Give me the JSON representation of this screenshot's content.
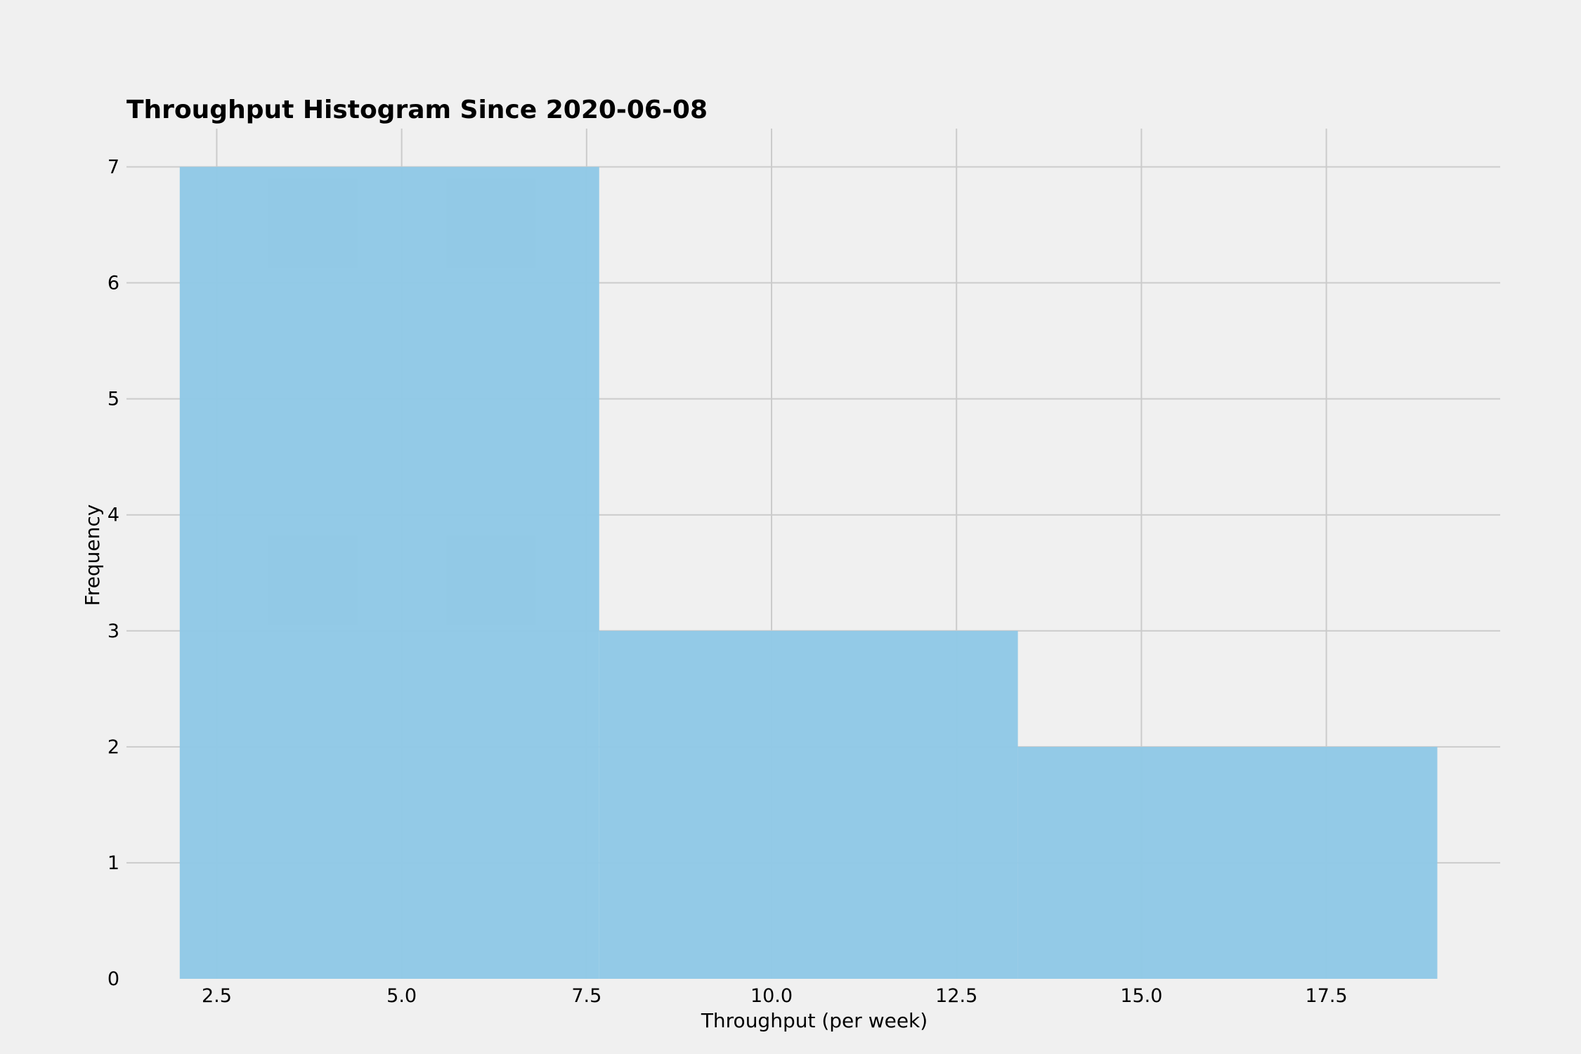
{
  "chart_data": {
    "type": "bar",
    "title": "Throughput Histogram Since 2020-06-08",
    "xlabel": "Throughput (per week)",
    "ylabel": "Frequency",
    "bins": [
      {
        "start": 2.0,
        "end": 7.67,
        "count": 7
      },
      {
        "start": 7.67,
        "end": 13.33,
        "count": 3
      },
      {
        "start": 13.33,
        "end": 19.0,
        "count": 2
      }
    ],
    "xlim": [
      1.28,
      19.85
    ],
    "ylim": [
      0,
      7.33
    ],
    "xticks": [
      2.5,
      5.0,
      7.5,
      10.0,
      12.5,
      15.0,
      17.5
    ],
    "xtick_labels": [
      "2.5",
      "5.0",
      "7.5",
      "10.0",
      "12.5",
      "15.0",
      "17.5"
    ],
    "yticks": [
      0,
      1,
      2,
      3,
      4,
      5,
      6,
      7
    ],
    "ytick_labels": [
      "0",
      "1",
      "2",
      "3",
      "4",
      "5",
      "6",
      "7"
    ],
    "grid": true,
    "bar_color": "#8fc8e6",
    "background_color": "#f0f0f0",
    "grid_color": "#cbcbcb"
  }
}
